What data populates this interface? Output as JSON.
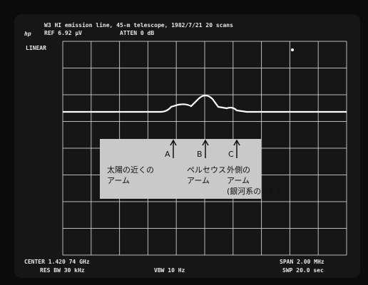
{
  "header": {
    "title": "W3 HI emission line, 45-m telescope, 1982/7/21 20 scans",
    "logo": "hp",
    "ref": "REF 6.92 µV",
    "atten": "ATTEN 0 dB",
    "scale": "LINEAR"
  },
  "footer": {
    "center": "CENTER 1.420 74 GHz",
    "span": "SPAN 2.00 MHz",
    "res_bw": "RES BW 30 kHz",
    "vbw": "VBW 10 Hz",
    "swp": "SWP 20.0 sec"
  },
  "annotations": [
    {
      "letter": "A",
      "lines": [
        "太陽の近くの",
        "アーム"
      ]
    },
    {
      "letter": "B",
      "lines": [
        "ペルセウス",
        "アーム"
      ]
    },
    {
      "letter": "C",
      "lines": [
        "外側の",
        "アーム",
        "(銀河系のはし)"
      ]
    }
  ]
}
